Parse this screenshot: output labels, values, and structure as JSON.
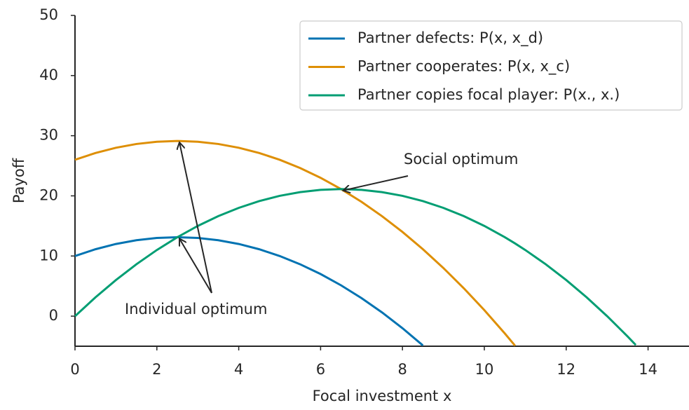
{
  "chart_data": {
    "type": "line",
    "xlabel": "Focal investment x",
    "ylabel": "Payoff",
    "x": [
      0,
      0.5,
      1,
      1.5,
      2,
      2.5,
      3,
      3.5,
      4,
      4.5,
      5,
      5.5,
      6,
      6.5,
      7,
      7.5,
      8,
      8.5,
      9,
      9.5,
      10,
      10.5,
      10.75,
      11,
      11.5,
      12,
      12.5,
      13,
      13.5,
      13.7
    ],
    "series": [
      {
        "name": "Partner defects: P(x, x_d)",
        "color": "#0173b2",
        "values": [
          10,
          11.125,
          12,
          12.625,
          13,
          13.125,
          13,
          12.625,
          12,
          11.125,
          10,
          8.625,
          7,
          5.125,
          3,
          0.625,
          -2,
          -4.875,
          null,
          null,
          null,
          null,
          null,
          null,
          null,
          null,
          null,
          null,
          null,
          null
        ]
      },
      {
        "name": "Partner cooperates: P(x, x_c)",
        "color": "#de8f05",
        "values": [
          26,
          27.125,
          28,
          28.625,
          29,
          29.125,
          29,
          28.625,
          28,
          27.125,
          26,
          24.625,
          23,
          21.125,
          19,
          16.625,
          14,
          11.125,
          8,
          4.625,
          1,
          -2.875,
          -4.90625,
          null,
          null,
          null,
          null,
          null,
          null,
          null
        ]
      },
      {
        "name": "Partner copies focal player: P(x., x.)",
        "color": "#029e73",
        "values": [
          0,
          3.125,
          6,
          8.625,
          11,
          13.125,
          15,
          16.625,
          18,
          19.125,
          20,
          20.625,
          21,
          21.125,
          21,
          20.625,
          20,
          19.125,
          18,
          16.625,
          15,
          13.125,
          12.09375,
          11,
          8.625,
          6,
          3.125,
          0,
          -3.375,
          -4.795
        ]
      }
    ],
    "annotations": [
      {
        "text": "Social optimum",
        "xy": [
          [
            6.5,
            21.125
          ]
        ]
      },
      {
        "text": "Individual optimum",
        "xy": [
          [
            2.5,
            29.125
          ],
          [
            2.5,
            13.125
          ]
        ]
      }
    ],
    "xlim": [
      0,
      15
    ],
    "ylim": [
      -5,
      50
    ],
    "xticks": [
      0,
      2,
      4,
      6,
      8,
      10,
      12,
      14
    ],
    "yticks": [
      0,
      10,
      20,
      30,
      40,
      50
    ],
    "legend": "upper right",
    "grid": false
  }
}
